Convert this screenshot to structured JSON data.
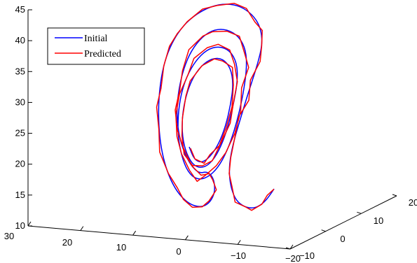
{
  "chart_data": {
    "type": "line",
    "title": "",
    "xlabel": "",
    "ylabel": "",
    "zlabel": "",
    "z_axis": {
      "ticks": [
        10,
        15,
        20,
        25,
        30,
        35,
        40,
        45
      ],
      "labels": [
        "10",
        "15",
        "20",
        "25",
        "30",
        "35",
        "40",
        "45"
      ],
      "range": [
        10,
        45
      ]
    },
    "x_axis": {
      "ticks": [
        30,
        20,
        10,
        0,
        -10,
        -20
      ],
      "labels": [
        "30",
        "20",
        "10",
        "0",
        "−10",
        "−20"
      ],
      "range": [
        -20,
        30
      ]
    },
    "y_axis": {
      "ticks": [
        -10,
        0,
        10,
        20
      ],
      "labels": [
        "−10",
        "0",
        "10",
        "20"
      ],
      "range": [
        -10,
        20
      ]
    },
    "grid": false,
    "legend": {
      "position": "top-left",
      "entries": [
        {
          "label": "Initial",
          "color": "#0000ff"
        },
        {
          "label": "Predicted",
          "color": "#ff0000"
        }
      ]
    },
    "series": [
      {
        "name": "Initial",
        "color": "#0000ff",
        "shape": "butterfly-lobe trajectory, smooth"
      },
      {
        "name": "Predicted",
        "color": "#ff0000",
        "shape": "same trajectory with small jagged deviations"
      }
    ]
  }
}
